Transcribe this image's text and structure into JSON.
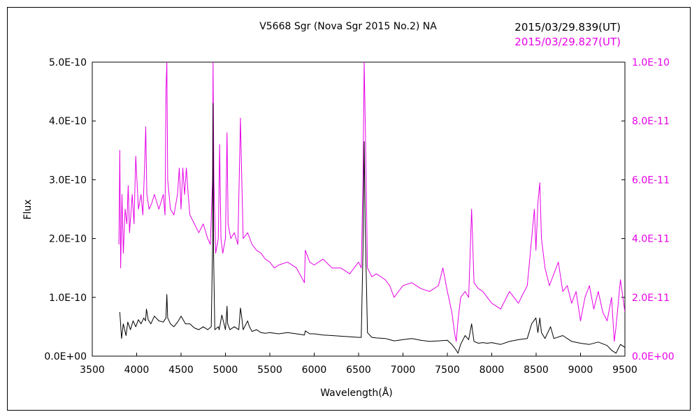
{
  "chart_data": {
    "type": "line",
    "title": "V5668 Sgr (Nova Sgr 2015 No.2)    NA",
    "xlabel": "Wavelength(Å)",
    "ylabel_left": "Flux",
    "ylabel_right": "",
    "xlim": [
      3500,
      9500
    ],
    "ylim_left": [
      0,
      5e-10
    ],
    "ylim_right": [
      0,
      1e-10
    ],
    "x_ticks": [
      "3500",
      "4000",
      "4500",
      "5000",
      "5500",
      "6000",
      "6500",
      "7000",
      "7500",
      "8000",
      "8500",
      "9000",
      "9500"
    ],
    "y_ticks_left": [
      "0.0E+00",
      "1.0E-10",
      "2.0E-10",
      "3.0E-10",
      "4.0E-10",
      "5.0E-10"
    ],
    "y_ticks_right": [
      "0.0E+00",
      "2.0E-11",
      "4.0E-11",
      "6.0E-11",
      "8.0E-11",
      "1.0E-10"
    ],
    "grid": false,
    "legend_position": "top-right",
    "series": [
      {
        "name": "2015/03/29.839(UT)",
        "axis": "left",
        "color": "#000000",
        "x": [
          3810,
          3830,
          3850,
          3880,
          3900,
          3930,
          3960,
          3990,
          4020,
          4050,
          4080,
          4100,
          4110,
          4130,
          4160,
          4200,
          4250,
          4300,
          4330,
          4340,
          4350,
          4380,
          4420,
          4470,
          4500,
          4550,
          4600,
          4650,
          4700,
          4750,
          4800,
          4840,
          4855,
          4861,
          4867,
          4880,
          4920,
          4930,
          4960,
          5000,
          5010,
          5018,
          5025,
          5050,
          5100,
          5150,
          5169,
          5180,
          5200,
          5250,
          5270,
          5300,
          5350,
          5400,
          5450,
          5500,
          5600,
          5700,
          5800,
          5890,
          5900,
          5950,
          6000,
          6100,
          6200,
          6300,
          6400,
          6500,
          6530,
          6550,
          6563,
          6575,
          6600,
          6650,
          6700,
          6800,
          6850,
          6900,
          7000,
          7100,
          7200,
          7300,
          7400,
          7500,
          7550,
          7600,
          7620,
          7650,
          7700,
          7740,
          7773,
          7800,
          7850,
          7900,
          7950,
          8000,
          8100,
          8200,
          8300,
          8400,
          8450,
          8498,
          8520,
          8542,
          8560,
          8600,
          8662,
          8700,
          8800,
          8900,
          9000,
          9100,
          9200,
          9300,
          9350,
          9400,
          9450,
          9500
        ],
        "y": [
          7.5e-11,
          3e-11,
          5.5e-11,
          3.5e-11,
          5.8e-11,
          4.5e-11,
          6e-11,
          5e-11,
          6.2e-11,
          5.5e-11,
          6.5e-11,
          6e-11,
          8e-11,
          6.2e-11,
          5.5e-11,
          6.8e-11,
          6e-11,
          5.8e-11,
          6.5e-11,
          1.05e-10,
          6.5e-11,
          5.5e-11,
          5e-11,
          6e-11,
          6.8e-11,
          5.5e-11,
          5.5e-11,
          4.8e-11,
          4.5e-11,
          5e-11,
          4.5e-11,
          5e-11,
          1.85e-10,
          4.3e-10,
          1.7e-10,
          4.5e-11,
          5e-11,
          4.5e-11,
          7e-11,
          4.5e-11,
          6.5e-11,
          8.5e-11,
          5.5e-11,
          4.5e-11,
          5e-11,
          4.5e-11,
          8.2e-11,
          7e-11,
          4.5e-11,
          6e-11,
          5e-11,
          4.2e-11,
          4.5e-11,
          4e-11,
          3.9e-11,
          4e-11,
          3.8e-11,
          4e-11,
          3.8e-11,
          3.6e-11,
          4.3e-11,
          3.8e-11,
          3.8e-11,
          3.6e-11,
          3.5e-11,
          3.4e-11,
          3.3e-11,
          3.2e-11,
          3.2e-11,
          1.8e-10,
          3.65e-10,
          2.2e-10,
          4e-11,
          3.2e-11,
          3.1e-11,
          3e-11,
          2.8e-11,
          2.6e-11,
          2.8e-11,
          3e-11,
          2.7e-11,
          2.5e-11,
          2.6e-11,
          2.7e-11,
          2e-11,
          1e-11,
          5e-12,
          2e-11,
          3.5e-11,
          2.8e-11,
          5.5e-11,
          2.5e-11,
          2.2e-11,
          2.3e-11,
          2.2e-11,
          2.3e-11,
          2e-11,
          2.5e-11,
          2.8e-11,
          3e-11,
          5.5e-11,
          6.5e-11,
          4e-11,
          6.5e-11,
          4e-11,
          3e-11,
          5e-11,
          3e-11,
          3.5e-11,
          2.5e-11,
          2.2e-11,
          2e-11,
          2.4e-11,
          1.8e-11,
          1e-11,
          5e-12,
          2e-11,
          1.5e-11
        ]
      },
      {
        "name": "2015/03/29.827(UT)",
        "axis": "right",
        "color": "#e600e6",
        "x": [
          3800,
          3810,
          3820,
          3835,
          3850,
          3870,
          3890,
          3905,
          3920,
          3950,
          3970,
          3990,
          4020,
          4050,
          4070,
          4090,
          4102,
          4115,
          4140,
          4170,
          4200,
          4250,
          4300,
          4320,
          4330,
          4340,
          4350,
          4380,
          4420,
          4460,
          4480,
          4500,
          4520,
          4540,
          4560,
          4580,
          4600,
          4650,
          4700,
          4750,
          4800,
          4830,
          4855,
          4861,
          4870,
          4890,
          4920,
          4935,
          4950,
          4970,
          5000,
          5010,
          5018,
          5030,
          5060,
          5100,
          5140,
          5169,
          5180,
          5200,
          5250,
          5300,
          5350,
          5400,
          5450,
          5500,
          5550,
          5600,
          5700,
          5800,
          5890,
          5900,
          5950,
          6000,
          6100,
          6200,
          6300,
          6400,
          6500,
          6530,
          6550,
          6563,
          6575,
          6600,
          6650,
          6700,
          6800,
          6850,
          6900,
          7000,
          7100,
          7200,
          7300,
          7400,
          7450,
          7500,
          7550,
          7580,
          7600,
          7620,
          7650,
          7700,
          7740,
          7773,
          7800,
          7850,
          7900,
          7950,
          8000,
          8100,
          8200,
          8300,
          8400,
          8450,
          8480,
          8498,
          8520,
          8542,
          8560,
          8600,
          8650,
          8700,
          8750,
          8800,
          8850,
          8900,
          8950,
          9000,
          9050,
          9100,
          9150,
          9200,
          9250,
          9300,
          9350,
          9380,
          9400,
          9450,
          9500
        ],
        "y": [
          3.8e-11,
          7e-11,
          3e-11,
          5.5e-11,
          3.5e-11,
          5e-11,
          4.5e-11,
          5.8e-11,
          4.2e-11,
          5.5e-11,
          4.5e-11,
          6.8e-11,
          5e-11,
          5.5e-11,
          4.8e-11,
          6.5e-11,
          7.8e-11,
          5.5e-11,
          5e-11,
          5.2e-11,
          5.5e-11,
          5e-11,
          5.5e-11,
          4.8e-11,
          9e-11,
          1e-10,
          6e-11,
          5e-11,
          4.8e-11,
          5.5e-11,
          6.4e-11,
          5e-11,
          6.4e-11,
          5.5e-11,
          6.4e-11,
          5.5e-11,
          4.8e-11,
          4.5e-11,
          4.2e-11,
          4.5e-11,
          4e-11,
          3.8e-11,
          6e-11,
          1e-10,
          6e-11,
          3.5e-11,
          4e-11,
          7.2e-11,
          4e-11,
          3.5e-11,
          4e-11,
          6e-11,
          7.6e-11,
          4.5e-11,
          4e-11,
          4.2e-11,
          3.8e-11,
          8.1e-11,
          6.5e-11,
          4e-11,
          4.2e-11,
          3.8e-11,
          3.6e-11,
          3.5e-11,
          3.3e-11,
          3.2e-11,
          3e-11,
          3.1e-11,
          3.2e-11,
          3e-11,
          2.5e-11,
          3.6e-11,
          3.2e-11,
          3.1e-11,
          3.3e-11,
          3e-11,
          3e-11,
          2.8e-11,
          3.2e-11,
          3e-11,
          6e-11,
          1e-10,
          8e-11,
          3e-11,
          2.7e-11,
          2.8e-11,
          2.6e-11,
          2.4e-11,
          2e-11,
          2.4e-11,
          2.5e-11,
          2.3e-11,
          2.2e-11,
          2.4e-11,
          3e-11,
          2.2e-11,
          1.5e-11,
          8e-12,
          5e-12,
          1.2e-11,
          2e-11,
          2.2e-11,
          2e-11,
          5e-11,
          2.5e-11,
          2.3e-11,
          2.2e-11,
          2e-11,
          1.8e-11,
          1.6e-11,
          2.2e-11,
          1.8e-11,
          2.4e-11,
          4e-11,
          5e-11,
          3.6e-11,
          5.2e-11,
          5.9e-11,
          4e-11,
          3e-11,
          2.4e-11,
          2.8e-11,
          3.2e-11,
          2.2e-11,
          2.4e-11,
          1.8e-11,
          2.2e-11,
          1.2e-11,
          2e-11,
          2.4e-11,
          1.6e-11,
          2.2e-11,
          1.5e-11,
          1.2e-11,
          2e-11,
          5e-12,
          1e-11,
          2.6e-11,
          1.5e-11
        ]
      }
    ]
  },
  "colors": {
    "series_black": "#000000",
    "series_magenta": "#e600e6"
  }
}
